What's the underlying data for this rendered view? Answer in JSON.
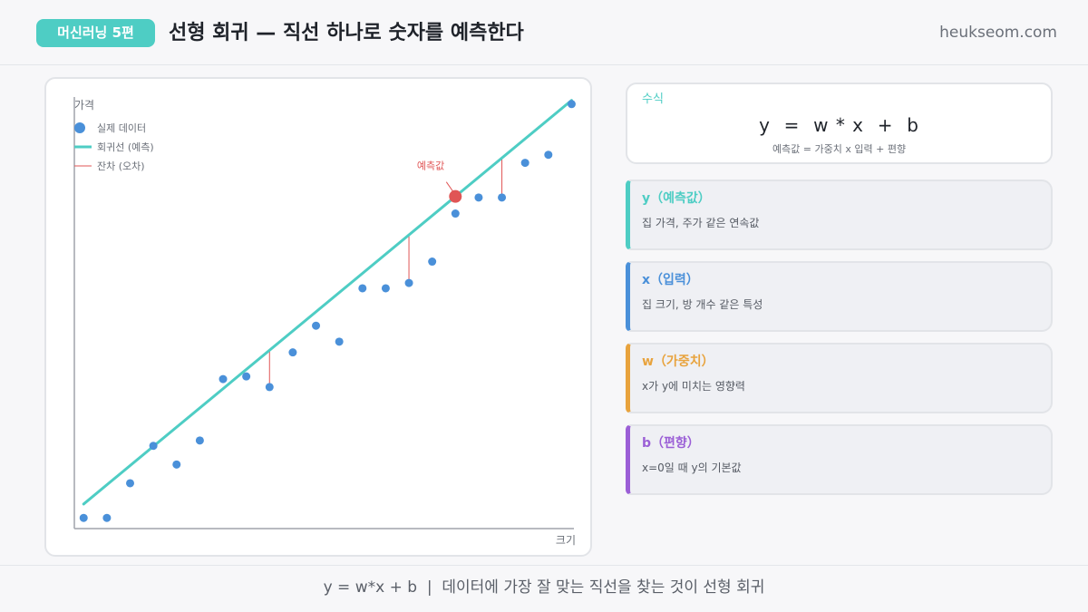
{
  "header": {
    "badge": "머신러닝 5편",
    "title": "선형 회귀 — 직선 하나로 숫자를 예측한다",
    "site": "heukseom.com"
  },
  "chart": {
    "y_label": "가격",
    "x_label": "크기",
    "legend": [
      {
        "label": "실제 데이터",
        "kind": "point",
        "color": "#4a90d9"
      },
      {
        "label": "회귀선 (예측)",
        "kind": "line",
        "color": "#4ecdc4"
      },
      {
        "label": "잔차 (오차)",
        "kind": "residual",
        "color": "#e05555"
      }
    ],
    "prediction_label": "예측값",
    "colors": {
      "point": "#4a90d9",
      "line": "#4ecdc4",
      "residual": "#e05555",
      "axis": "#a0a4ab"
    }
  },
  "chart_data": {
    "type": "scatter",
    "xlabel": "크기",
    "ylabel": "가격",
    "points": [
      {
        "x": 1,
        "y": 0.0
      },
      {
        "x": 2,
        "y": 0.0
      },
      {
        "x": 3,
        "y": 1.3
      },
      {
        "x": 4,
        "y": 2.7
      },
      {
        "x": 5,
        "y": 2.0
      },
      {
        "x": 6,
        "y": 2.9
      },
      {
        "x": 7,
        "y": 5.2
      },
      {
        "x": 8,
        "y": 5.3
      },
      {
        "x": 9,
        "y": 4.9
      },
      {
        "x": 10,
        "y": 6.2
      },
      {
        "x": 11,
        "y": 7.2
      },
      {
        "x": 12,
        "y": 6.6
      },
      {
        "x": 13,
        "y": 8.6
      },
      {
        "x": 14,
        "y": 8.6
      },
      {
        "x": 15,
        "y": 8.8
      },
      {
        "x": 16,
        "y": 9.6
      },
      {
        "x": 17,
        "y": 11.4
      },
      {
        "x": 18,
        "y": 12.0
      },
      {
        "x": 19,
        "y": 12.0
      },
      {
        "x": 20,
        "y": 13.3
      },
      {
        "x": 21,
        "y": 13.6
      },
      {
        "x": 22,
        "y": 15.5
      }
    ],
    "regression_line": {
      "slope": 0.72,
      "intercept": -0.2
    },
    "residual_points_x": [
      9,
      15,
      19
    ],
    "prediction_point": {
      "x": 17,
      "y": 12.04
    },
    "xlim": [
      0.6,
      22.1
    ],
    "ylim": [
      -0.4,
      15.9
    ]
  },
  "formula": {
    "label": "수식",
    "main": "y  =  w * x  +  b",
    "sub": "예측값 = 가중치 x 입력 + 편향"
  },
  "variables": [
    {
      "title": "y（예측값）",
      "desc": "집 가격, 주가 같은 연속값",
      "color": "#4ecdc4"
    },
    {
      "title": "x（입력）",
      "desc": "집 크기, 방 개수 같은 특성",
      "color": "#4a90d9"
    },
    {
      "title": "w（가중치）",
      "desc": "x가 y에 미치는 영향력",
      "color": "#e8a33d"
    },
    {
      "title": "b（편향）",
      "desc": "x=0일 때 y의 기본값",
      "color": "#9b5fd6"
    }
  ],
  "footer": {
    "text": "y = w*x + b  |  데이터에 가장 잘 맞는 직선을 찾는 것이 선형 회귀"
  }
}
